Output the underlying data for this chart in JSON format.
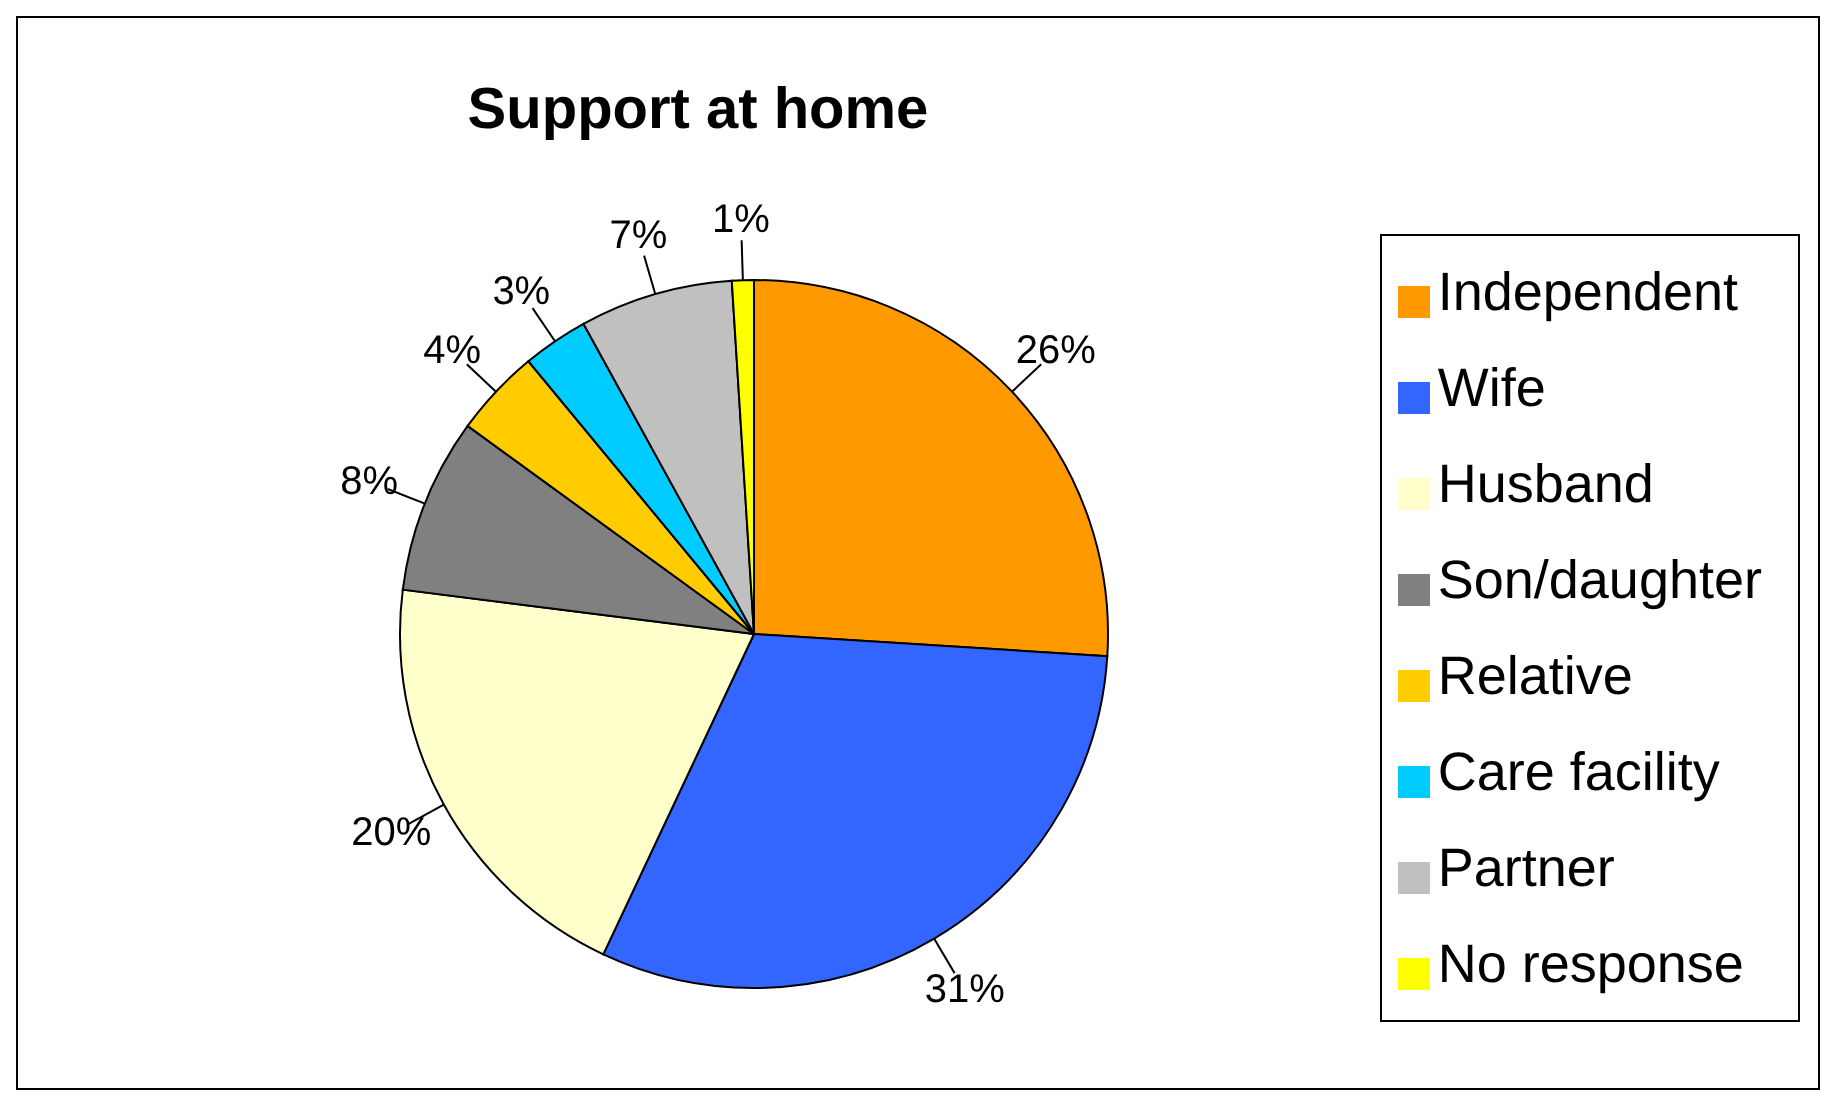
{
  "chart_data": {
    "type": "pie",
    "title": "Support at home",
    "categories": [
      "Independent",
      "Wife",
      "Husband",
      "Son/daughter",
      "Relative",
      "Care facility",
      "Partner",
      "No response"
    ],
    "values": [
      26,
      31,
      20,
      8,
      4,
      3,
      7,
      1
    ],
    "value_labels": [
      "26%",
      "31%",
      "20%",
      "8%",
      "4%",
      "3%",
      "7%",
      "1%"
    ],
    "colors": [
      "#ff9900",
      "#3366ff",
      "#ffffcc",
      "#808080",
      "#ffcc00",
      "#00ccff",
      "#c0c0c0",
      "#ffff00"
    ],
    "legend": "right"
  }
}
